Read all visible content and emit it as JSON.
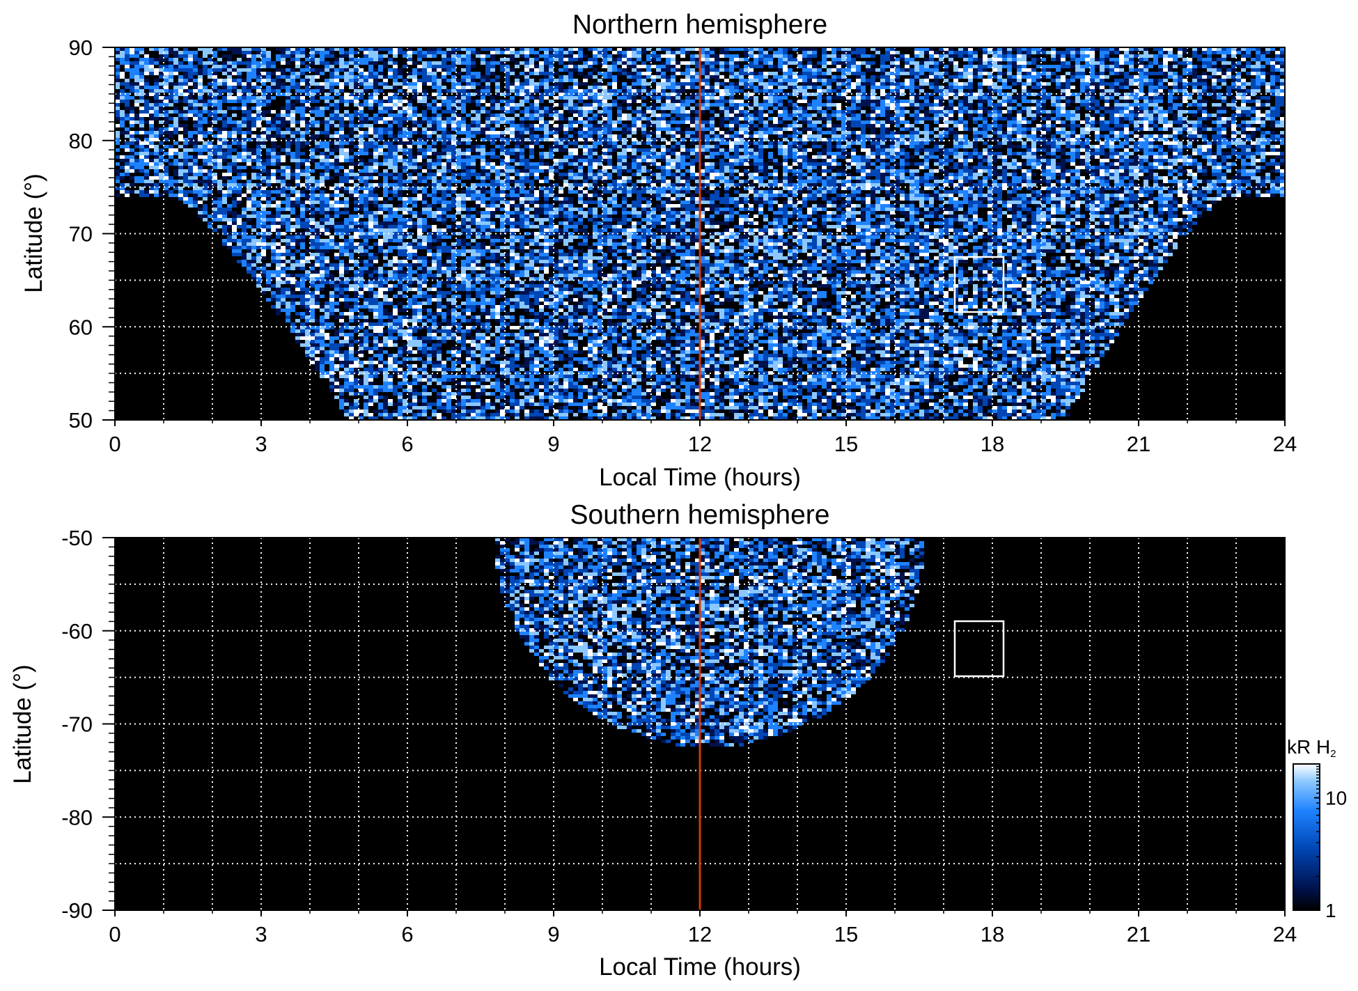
{
  "chart_data": [
    {
      "type": "heatmap",
      "title": "Northern hemisphere",
      "xlabel": "Local Time (hours)",
      "ylabel": "Latitude (°)",
      "xlim": [
        0,
        24
      ],
      "ylim": [
        50,
        90
      ],
      "x_ticks": [
        "0",
        "3",
        "6",
        "9",
        "12",
        "15",
        "18",
        "21",
        "24"
      ],
      "y_ticks": [
        "50",
        "60",
        "70",
        "80",
        "90"
      ],
      "grid": true,
      "colormap": [
        "#000000",
        "#00124d",
        "#0046b4",
        "#1e82ff",
        "#8cc8ff",
        "#ffffff"
      ],
      "coverage": "Emission everywhere above ~74° latitude; toward lower latitudes the covered region narrows to a funnel centred on noon, spanning ~4.8–19.5 h at 50°.",
      "noon_line": {
        "x": 12,
        "color": "#d03a10"
      },
      "box": {
        "x_range": [
          17.3,
          18.3
        ],
        "y_range": [
          61.5,
          67.5
        ],
        "color": "#ffffff"
      }
    },
    {
      "type": "heatmap",
      "title": "Southern hemisphere",
      "xlabel": "Local Time (hours)",
      "ylabel": "Latitude (°)",
      "xlim": [
        0,
        24
      ],
      "ylim": [
        -90,
        -50
      ],
      "x_ticks": [
        "0",
        "3",
        "6",
        "9",
        "12",
        "15",
        "18",
        "21",
        "24"
      ],
      "y_ticks": [
        "-50",
        "-60",
        "-70",
        "-80",
        "-90"
      ],
      "grid": true,
      "colormap": [
        "#000000",
        "#00124d",
        "#0046b4",
        "#1e82ff",
        "#8cc8ff",
        "#ffffff"
      ],
      "coverage": "Emission only in a dayside cap from -50° down to about -72°, spanning ~7.8–16.6 h at -50°.",
      "noon_line": {
        "x": 12,
        "color": "#d03a10"
      },
      "box": {
        "x_range": [
          17.3,
          18.3
        ],
        "y_range": [
          -65,
          -59
        ],
        "color": "#ffffff"
      }
    }
  ],
  "colorbar": {
    "title": "kR H",
    "title_subscript": "2",
    "ticks": [
      "10",
      "1"
    ],
    "scale": "log",
    "range": [
      1,
      20
    ]
  }
}
